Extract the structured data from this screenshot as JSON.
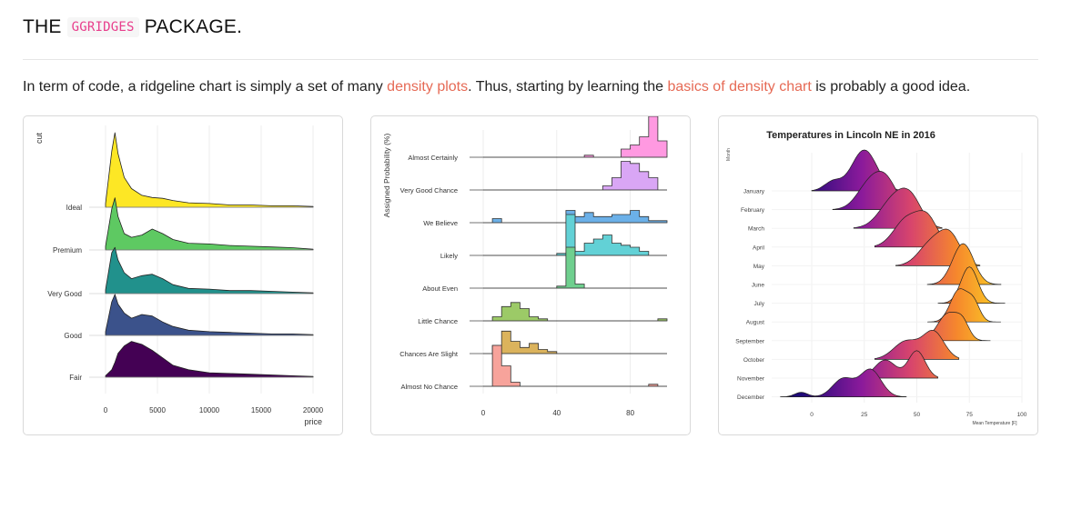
{
  "heading": {
    "prefix": "THE",
    "code": "GGRIDGES",
    "suffix": "PACKAGE."
  },
  "intro": {
    "part1": "In term of code, a ridgeline chart is simply a set of many ",
    "link1": "density plots",
    "part2": ". Thus, starting by learning the ",
    "link2": "basics of density chart",
    "part3": " is probably a good idea."
  },
  "colors": {
    "link": "#e66a55",
    "code": "#e83e8c"
  },
  "chart_data": [
    {
      "type": "area",
      "title": "",
      "xlabel": "price",
      "ylabel": "cut",
      "xlim": [
        0,
        20000
      ],
      "x_ticks": [
        "0",
        "5000",
        "10000",
        "15000",
        "20000"
      ],
      "categories": [
        "Ideal",
        "Premium",
        "Very Good",
        "Good",
        "Fair"
      ],
      "x": [
        0,
        600,
        900,
        1200,
        1800,
        2500,
        3500,
        4500,
        5500,
        6500,
        8000,
        10000,
        12000,
        14000,
        16000,
        18000,
        20000
      ],
      "series": [
        {
          "name": "Ideal",
          "color": "#fde725",
          "values": [
            0.05,
            0.75,
            1.0,
            0.72,
            0.4,
            0.25,
            0.16,
            0.13,
            0.12,
            0.09,
            0.06,
            0.05,
            0.03,
            0.03,
            0.02,
            0.02,
            0.01
          ]
        },
        {
          "name": "Premium",
          "color": "#5ec962",
          "values": [
            0.05,
            0.55,
            0.7,
            0.45,
            0.22,
            0.17,
            0.2,
            0.28,
            0.22,
            0.14,
            0.09,
            0.08,
            0.06,
            0.05,
            0.04,
            0.03,
            0.01
          ]
        },
        {
          "name": "Very Good",
          "color": "#21918c",
          "values": [
            0.05,
            0.55,
            0.62,
            0.45,
            0.28,
            0.2,
            0.24,
            0.26,
            0.2,
            0.12,
            0.07,
            0.06,
            0.04,
            0.04,
            0.03,
            0.02,
            0.01
          ]
        },
        {
          "name": "Good",
          "color": "#3b528b",
          "values": [
            0.05,
            0.45,
            0.55,
            0.42,
            0.3,
            0.23,
            0.28,
            0.26,
            0.18,
            0.12,
            0.07,
            0.05,
            0.04,
            0.03,
            0.02,
            0.02,
            0.01
          ]
        },
        {
          "name": "Fair",
          "color": "#440154",
          "values": [
            0.02,
            0.1,
            0.2,
            0.32,
            0.42,
            0.48,
            0.44,
            0.36,
            0.26,
            0.16,
            0.1,
            0.06,
            0.05,
            0.04,
            0.03,
            0.02,
            0.01
          ]
        }
      ]
    },
    {
      "type": "area",
      "title": "",
      "xlabel": "",
      "ylabel": "Assigned Probability (%)",
      "xlim": [
        0,
        100
      ],
      "x_ticks": [
        "0",
        "40",
        "80"
      ],
      "categories": [
        "Almost Certainly",
        "Very Good Chance",
        "We Believe",
        "Likely",
        "About Even",
        "Little Chance",
        "Chances Are Slight",
        "Almost No Chance"
      ],
      "series": [
        {
          "name": "Almost Certainly",
          "color": "#ff99e1",
          "x": [
            0,
            55,
            60,
            75,
            80,
            85,
            90,
            95,
            100
          ],
          "values": [
            0,
            0.05,
            0,
            0.2,
            0.3,
            0.5,
            1.0,
            0.4,
            0
          ]
        },
        {
          "name": "Very Good Chance",
          "color": "#d9a6f5",
          "x": [
            0,
            65,
            70,
            75,
            80,
            85,
            90,
            95,
            100
          ],
          "values": [
            0,
            0.1,
            0.3,
            0.7,
            0.65,
            0.45,
            0.3,
            0,
            0
          ]
        },
        {
          "name": "We Believe",
          "color": "#6bb0e8",
          "x": [
            0,
            5,
            10,
            45,
            50,
            55,
            60,
            70,
            80,
            85,
            90,
            100
          ],
          "values": [
            0,
            0.1,
            0,
            0.3,
            0.15,
            0.25,
            0.15,
            0.2,
            0.3,
            0.15,
            0.05,
            0
          ]
        },
        {
          "name": "Likely",
          "color": "#62d1d6",
          "x": [
            0,
            40,
            45,
            50,
            55,
            60,
            65,
            70,
            75,
            80,
            85,
            90,
            100
          ],
          "values": [
            0,
            0.05,
            1.0,
            0.1,
            0.3,
            0.4,
            0.5,
            0.3,
            0.25,
            0.2,
            0.1,
            0,
            0
          ]
        },
        {
          "name": "About Even",
          "color": "#6fcf8e",
          "x": [
            0,
            40,
            45,
            50,
            55,
            100
          ],
          "values": [
            0,
            0.05,
            1.0,
            0.1,
            0,
            0
          ]
        },
        {
          "name": "Little Chance",
          "color": "#9cca67",
          "x": [
            0,
            5,
            10,
            15,
            20,
            25,
            30,
            35,
            95,
            100
          ],
          "values": [
            0,
            0.1,
            0.35,
            0.45,
            0.3,
            0.1,
            0.05,
            0,
            0.05,
            0
          ]
        },
        {
          "name": "Chances Are Slight",
          "color": "#dbb35c",
          "x": [
            0,
            5,
            10,
            15,
            20,
            25,
            30,
            35,
            40,
            100
          ],
          "values": [
            0,
            0.2,
            0.55,
            0.3,
            0.15,
            0.25,
            0.1,
            0.05,
            0,
            0
          ]
        },
        {
          "name": "Almost No Chance",
          "color": "#f7a39b",
          "x": [
            0,
            5,
            10,
            15,
            20,
            90,
            95,
            100
          ],
          "values": [
            0,
            1.0,
            0.5,
            0.1,
            0,
            0.05,
            0,
            0
          ]
        }
      ]
    },
    {
      "type": "area",
      "title": "Temperatures in Lincoln NE in 2016",
      "xlabel": "Mean Temperature [F]",
      "ylabel": "Month",
      "xlim": [
        -10,
        100
      ],
      "x_ticks": [
        "0",
        "25",
        "50",
        "75",
        "100"
      ],
      "categories": [
        "January",
        "February",
        "March",
        "April",
        "May",
        "June",
        "July",
        "August",
        "September",
        "October",
        "November",
        "December"
      ],
      "series": [
        {
          "name": "January",
          "peaks": [
            [
              10,
              4,
              0.2
            ],
            [
              25,
              6,
              0.9
            ]
          ],
          "range": [
            0,
            45
          ]
        },
        {
          "name": "February",
          "peaks": [
            [
              28,
              6,
              0.6
            ],
            [
              36,
              5,
              0.5
            ]
          ],
          "range": [
            10,
            50
          ]
        },
        {
          "name": "March",
          "peaks": [
            [
              40,
              7,
              0.7
            ],
            [
              48,
              5,
              0.4
            ]
          ],
          "range": [
            20,
            62
          ]
        },
        {
          "name": "April",
          "peaks": [
            [
              45,
              6,
              0.6
            ],
            [
              55,
              5,
              0.6
            ]
          ],
          "range": [
            30,
            72
          ]
        },
        {
          "name": "May",
          "peaks": [
            [
              57,
              6,
              0.5
            ],
            [
              66,
              5,
              0.6
            ]
          ],
          "range": [
            40,
            80
          ]
        },
        {
          "name": "June",
          "peaks": [
            [
              72,
              5,
              0.9
            ]
          ],
          "range": [
            55,
            90
          ]
        },
        {
          "name": "July",
          "peaks": [
            [
              75,
              4,
              0.8
            ]
          ],
          "range": [
            60,
            92
          ]
        },
        {
          "name": "August",
          "peaks": [
            [
              70,
              4,
              0.7
            ],
            [
              77,
              3,
              0.4
            ]
          ],
          "range": [
            55,
            90
          ]
        },
        {
          "name": "September",
          "peaks": [
            [
              65,
              5,
              0.6
            ],
            [
              72,
              3,
              0.3
            ]
          ],
          "range": [
            50,
            85
          ]
        },
        {
          "name": "October",
          "peaks": [
            [
              45,
              6,
              0.4
            ],
            [
              58,
              5,
              0.6
            ]
          ],
          "range": [
            30,
            70
          ]
        },
        {
          "name": "November",
          "peaks": [
            [
              35,
              5,
              0.4
            ],
            [
              50,
              4,
              0.6
            ]
          ],
          "range": [
            20,
            60
          ]
        },
        {
          "name": "December",
          "peaks": [
            [
              -5,
              3,
              0.1
            ],
            [
              15,
              5,
              0.4
            ],
            [
              28,
              5,
              0.6
            ]
          ],
          "range": [
            -15,
            45
          ]
        }
      ]
    }
  ]
}
